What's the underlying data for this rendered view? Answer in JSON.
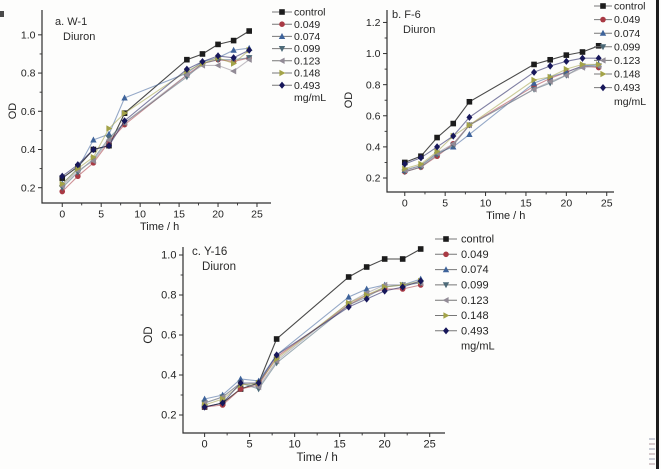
{
  "figure": {
    "background": "#fdfdfc",
    "axis_color": "#2f2f2f",
    "legend_unit_label": "mg/mL"
  },
  "series_styles": [
    {
      "label": "control",
      "marker": "square",
      "color": "#1c1c1c"
    },
    {
      "label": "0.049",
      "marker": "circle",
      "color": "#a93a44"
    },
    {
      "label": "0.074",
      "marker": "triangle-up",
      "color": "#3e639a"
    },
    {
      "label": "0.099",
      "marker": "triangle-down",
      "color": "#4d6a78"
    },
    {
      "label": "0.123",
      "marker": "triangle-left",
      "color": "#928b96"
    },
    {
      "label": "0.148",
      "marker": "triangle-right",
      "color": "#a3a348"
    },
    {
      "label": "0.493",
      "marker": "diamond",
      "color": "#17175a"
    }
  ],
  "chart_data": [
    {
      "id": "a",
      "type": "line",
      "panel_label": "a. W-1",
      "compound": "Diuron",
      "xlabel": "Time / h",
      "ylabel": "OD",
      "x": [
        0,
        2,
        4,
        6,
        8,
        16,
        18,
        20,
        22,
        24
      ],
      "xticks": [
        0,
        5,
        10,
        15,
        20,
        25
      ],
      "yticks": [
        0.2,
        0.4,
        0.6,
        0.8,
        1.0
      ],
      "xlim": [
        -2.6,
        26.8
      ],
      "ylim": [
        0.12,
        1.13
      ],
      "legend_position": "right",
      "series": [
        {
          "name": "control",
          "values": [
            0.25,
            0.31,
            0.4,
            0.42,
            0.59,
            0.87,
            0.9,
            0.95,
            0.97,
            1.02
          ]
        },
        {
          "name": "0.049",
          "values": [
            0.18,
            0.26,
            0.33,
            0.44,
            0.53,
            0.79,
            0.85,
            0.87,
            0.86,
            0.88
          ]
        },
        {
          "name": "0.074",
          "values": [
            0.22,
            0.3,
            0.45,
            0.48,
            0.67,
            0.8,
            0.86,
            0.88,
            0.92,
            0.93
          ]
        },
        {
          "name": "0.099",
          "values": [
            0.2,
            0.28,
            0.35,
            0.46,
            0.54,
            0.78,
            0.85,
            0.87,
            0.87,
            0.88
          ]
        },
        {
          "name": "0.123",
          "values": [
            0.21,
            0.29,
            0.34,
            0.45,
            0.54,
            0.79,
            0.84,
            0.84,
            0.81,
            0.87
          ]
        },
        {
          "name": "0.148",
          "values": [
            0.22,
            0.3,
            0.36,
            0.51,
            0.59,
            0.81,
            0.85,
            0.88,
            0.85,
            0.92
          ]
        },
        {
          "name": "0.493",
          "values": [
            0.26,
            0.32,
            0.4,
            0.42,
            0.55,
            0.82,
            0.86,
            0.89,
            0.88,
            0.92
          ]
        }
      ]
    },
    {
      "id": "b",
      "type": "line",
      "panel_label": "b. F-6",
      "compound": "Diuron",
      "xlabel": "Time / h",
      "ylabel": "OD",
      "x": [
        0,
        2,
        4,
        6,
        8,
        16,
        18,
        20,
        22,
        24
      ],
      "xticks": [
        0,
        5,
        10,
        15,
        20,
        25
      ],
      "yticks": [
        0.2,
        0.4,
        0.6,
        0.8,
        1.0,
        1.2
      ],
      "xlim": [
        -2.2,
        25.9
      ],
      "ylim": [
        0.11,
        1.28
      ],
      "legend_position": "right",
      "series": [
        {
          "name": "control",
          "values": [
            0.3,
            0.34,
            0.46,
            0.55,
            0.69,
            0.93,
            0.96,
            0.99,
            1.01,
            1.05
          ]
        },
        {
          "name": "0.049",
          "values": [
            0.24,
            0.27,
            0.34,
            0.42,
            0.54,
            0.79,
            0.84,
            0.88,
            0.92,
            0.91
          ]
        },
        {
          "name": "0.074",
          "values": [
            0.25,
            0.28,
            0.36,
            0.4,
            0.48,
            0.81,
            0.85,
            0.88,
            0.92,
            0.93
          ]
        },
        {
          "name": "0.099",
          "values": [
            0.24,
            0.27,
            0.35,
            0.41,
            0.54,
            0.77,
            0.81,
            0.86,
            0.92,
            0.92
          ]
        },
        {
          "name": "0.123",
          "values": [
            0.25,
            0.28,
            0.36,
            0.42,
            0.54,
            0.77,
            0.82,
            0.86,
            0.91,
            0.92
          ]
        },
        {
          "name": "0.148",
          "values": [
            0.26,
            0.29,
            0.37,
            0.47,
            0.54,
            0.83,
            0.85,
            0.9,
            0.93,
            0.93
          ]
        },
        {
          "name": "0.493",
          "values": [
            0.29,
            0.33,
            0.4,
            0.47,
            0.59,
            0.88,
            0.92,
            0.95,
            0.97,
            0.97
          ]
        }
      ]
    },
    {
      "id": "c",
      "type": "line",
      "panel_label": "c. Y-16",
      "compound": "Diuron",
      "xlabel": "Time / h",
      "ylabel": "OD",
      "x": [
        0,
        2,
        4,
        6,
        8,
        16,
        18,
        20,
        22,
        24
      ],
      "xticks": [
        0,
        5,
        10,
        15,
        20,
        25
      ],
      "yticks": [
        0.2,
        0.4,
        0.6,
        0.8,
        1.0
      ],
      "xlim": [
        -2.4,
        26.7
      ],
      "ylim": [
        0.11,
        1.04
      ],
      "legend_position": "right",
      "series": [
        {
          "name": "control",
          "values": [
            0.24,
            0.26,
            0.33,
            0.36,
            0.58,
            0.89,
            0.94,
            0.98,
            0.98,
            1.03
          ]
        },
        {
          "name": "0.049",
          "values": [
            0.24,
            0.25,
            0.33,
            0.35,
            0.49,
            0.75,
            0.8,
            0.83,
            0.83,
            0.85
          ]
        },
        {
          "name": "0.074",
          "values": [
            0.28,
            0.3,
            0.38,
            0.37,
            0.5,
            0.79,
            0.83,
            0.85,
            0.85,
            0.88
          ]
        },
        {
          "name": "0.099",
          "values": [
            0.26,
            0.29,
            0.36,
            0.33,
            0.46,
            0.75,
            0.79,
            0.84,
            0.85,
            0.86
          ]
        },
        {
          "name": "0.123",
          "values": [
            0.26,
            0.29,
            0.36,
            0.34,
            0.47,
            0.76,
            0.81,
            0.85,
            0.85,
            0.86
          ]
        },
        {
          "name": "0.148",
          "values": [
            0.25,
            0.28,
            0.35,
            0.36,
            0.48,
            0.76,
            0.8,
            0.84,
            0.85,
            0.87
          ]
        },
        {
          "name": "0.493",
          "values": [
            0.24,
            0.26,
            0.36,
            0.36,
            0.5,
            0.74,
            0.78,
            0.82,
            0.84,
            0.87
          ]
        }
      ]
    }
  ]
}
